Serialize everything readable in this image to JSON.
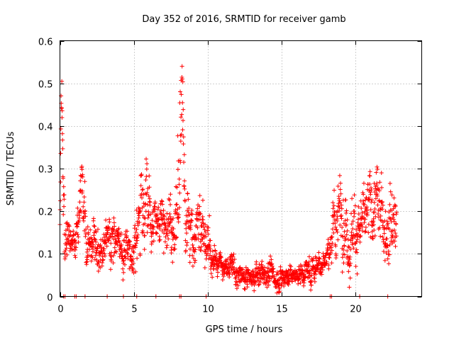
{
  "chart_data": {
    "type": "scatter",
    "title": "Day 352 of 2016, SRMTID for receiver gamb",
    "xlabel": "GPS time / hours",
    "ylabel": "SRMTID / TECUs",
    "xlim": [
      0,
      24.5
    ],
    "ylim": [
      0,
      0.6
    ],
    "xticks": [
      0,
      5,
      10,
      15,
      20
    ],
    "xtick_labels": [
      "0",
      "5",
      "10",
      "15",
      "20"
    ],
    "yticks": [
      0,
      0.1,
      0.2,
      0.3,
      0.4,
      0.5,
      0.6
    ],
    "ytick_labels": [
      "0",
      "0.1",
      "0.2",
      "0.3",
      "0.4",
      "0.5",
      "0.6"
    ],
    "grid": true,
    "marker": "+",
    "color": "#ff0000",
    "x_range": [
      0,
      22.8
    ],
    "profile": [
      [
        0.0,
        0.16,
        0.04
      ],
      [
        0.1,
        0.42,
        0.06
      ],
      [
        0.2,
        0.3,
        0.07
      ],
      [
        0.35,
        0.16,
        0.04
      ],
      [
        0.6,
        0.14,
        0.03
      ],
      [
        1.0,
        0.12,
        0.02
      ],
      [
        1.5,
        0.22,
        0.06
      ],
      [
        2.0,
        0.12,
        0.03
      ],
      [
        2.5,
        0.13,
        0.04
      ],
      [
        3.0,
        0.11,
        0.03
      ],
      [
        3.5,
        0.12,
        0.04
      ],
      [
        4.0,
        0.11,
        0.03
      ],
      [
        4.4,
        0.1,
        0.03
      ],
      [
        5.2,
        0.15,
        0.04
      ],
      [
        5.8,
        0.25,
        0.08
      ],
      [
        6.2,
        0.14,
        0.04
      ],
      [
        6.7,
        0.18,
        0.04
      ],
      [
        7.2,
        0.17,
        0.05
      ],
      [
        7.7,
        0.16,
        0.05
      ],
      [
        8.1,
        0.28,
        0.1
      ],
      [
        8.3,
        0.45,
        0.08
      ],
      [
        8.5,
        0.2,
        0.05
      ],
      [
        9.0,
        0.14,
        0.05
      ],
      [
        9.6,
        0.2,
        0.05
      ],
      [
        10.0,
        0.11,
        0.04
      ],
      [
        10.5,
        0.08,
        0.02
      ],
      [
        11.0,
        0.07,
        0.02
      ],
      [
        11.5,
        0.07,
        0.02
      ],
      [
        12.0,
        0.05,
        0.02
      ],
      [
        12.5,
        0.04,
        0.015
      ],
      [
        13.0,
        0.04,
        0.015
      ],
      [
        13.5,
        0.05,
        0.02
      ],
      [
        14.0,
        0.06,
        0.02
      ],
      [
        14.5,
        0.04,
        0.02
      ],
      [
        15.0,
        0.05,
        0.02
      ],
      [
        15.5,
        0.05,
        0.015
      ],
      [
        16.0,
        0.05,
        0.015
      ],
      [
        16.5,
        0.06,
        0.02
      ],
      [
        17.0,
        0.06,
        0.02
      ],
      [
        17.5,
        0.08,
        0.02
      ],
      [
        18.0,
        0.09,
        0.02
      ],
      [
        18.5,
        0.14,
        0.04
      ],
      [
        19.0,
        0.22,
        0.06
      ],
      [
        19.5,
        0.14,
        0.05
      ],
      [
        20.0,
        0.17,
        0.05
      ],
      [
        20.5,
        0.15,
        0.05
      ],
      [
        21.0,
        0.2,
        0.05
      ],
      [
        21.5,
        0.21,
        0.05
      ],
      [
        22.0,
        0.18,
        0.05
      ],
      [
        22.5,
        0.2,
        0.06
      ],
      [
        22.8,
        0.17,
        0.05
      ]
    ],
    "zero_points_x": [
      0.25,
      0.35,
      1.0,
      1.1,
      1.7,
      3.2,
      4.3,
      5.2,
      6.5,
      8.1,
      8.2,
      9.9,
      18.3,
      18.4,
      20.3,
      22.2
    ]
  }
}
